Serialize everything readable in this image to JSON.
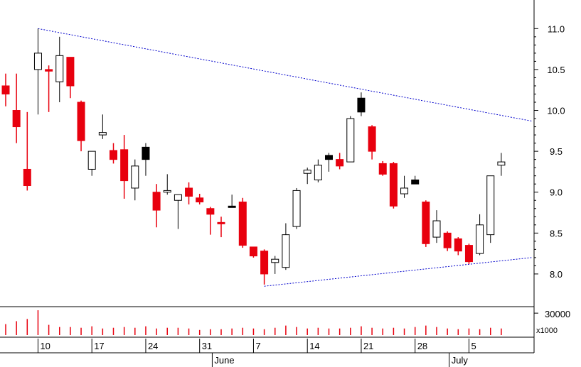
{
  "chart_data": {
    "type": "candlestick",
    "y_axis": {
      "ticks": [
        "8.0",
        "8.5",
        "9.0",
        "9.5",
        "10.0",
        "10.5",
        "11.0"
      ],
      "ylim": [
        7.6,
        11.35
      ]
    },
    "volume_axis": {
      "tick": "30000",
      "unit": "x1000",
      "ylim": [
        0,
        35000
      ]
    },
    "x_ticks": [
      {
        "label": "10",
        "index": 3
      },
      {
        "label": "17",
        "index": 8
      },
      {
        "label": "24",
        "index": 13
      },
      {
        "label": "31",
        "index": 18
      },
      {
        "label": "7",
        "index": 23
      },
      {
        "label": "14",
        "index": 28
      },
      {
        "label": "21",
        "index": 33
      },
      {
        "label": "28",
        "index": 38
      },
      {
        "label": "5",
        "index": 43
      }
    ],
    "months": [
      {
        "label": "June",
        "index": 19.5
      },
      {
        "label": "July",
        "index": 41.5
      }
    ],
    "candles": [
      {
        "open": 10.3,
        "high": 10.45,
        "low": 10.05,
        "close": 10.2,
        "color": "red",
        "volume": 15000
      },
      {
        "open": 10.0,
        "high": 10.45,
        "low": 9.6,
        "close": 9.8,
        "color": "red",
        "volume": 19000
      },
      {
        "open": 9.28,
        "high": 9.98,
        "low": 9.02,
        "close": 9.08,
        "color": "red",
        "volume": 22000
      },
      {
        "open": 10.5,
        "high": 11.0,
        "low": 9.95,
        "close": 10.7,
        "color": "white",
        "volume": 34000
      },
      {
        "open": 10.48,
        "high": 10.55,
        "low": 9.98,
        "close": 10.5,
        "color": "red",
        "volume": 14000
      },
      {
        "open": 10.35,
        "high": 10.9,
        "low": 10.1,
        "close": 10.67,
        "color": "white",
        "volume": 11000
      },
      {
        "open": 10.65,
        "high": 10.65,
        "low": 10.15,
        "close": 10.3,
        "color": "red",
        "volume": 11000
      },
      {
        "open": 10.1,
        "high": 10.12,
        "low": 9.5,
        "close": 9.63,
        "color": "red",
        "volume": 10000
      },
      {
        "open": 9.28,
        "high": 9.5,
        "low": 9.2,
        "close": 9.5,
        "color": "white",
        "volume": 12000
      },
      {
        "open": 9.7,
        "high": 9.95,
        "low": 9.65,
        "close": 9.73,
        "color": "white",
        "volume": 9000
      },
      {
        "open": 9.51,
        "high": 9.6,
        "low": 9.35,
        "close": 9.4,
        "color": "red",
        "volume": 10000
      },
      {
        "open": 9.52,
        "high": 9.7,
        "low": 8.92,
        "close": 9.14,
        "color": "red",
        "volume": 11000
      },
      {
        "open": 9.05,
        "high": 9.4,
        "low": 8.9,
        "close": 9.32,
        "color": "white",
        "volume": 10000
      },
      {
        "open": 9.4,
        "high": 9.6,
        "low": 9.2,
        "close": 9.55,
        "color": "black",
        "volume": 12000
      },
      {
        "open": 9.0,
        "high": 9.1,
        "low": 8.57,
        "close": 8.78,
        "color": "red",
        "volume": 9000
      },
      {
        "open": 9.0,
        "high": 9.22,
        "low": 8.97,
        "close": 9.02,
        "color": "white",
        "volume": 10000
      },
      {
        "open": 8.9,
        "high": 8.97,
        "low": 8.55,
        "close": 8.97,
        "color": "white",
        "volume": 10000
      },
      {
        "open": 9.05,
        "high": 9.12,
        "low": 8.85,
        "close": 8.95,
        "color": "red",
        "volume": 9000
      },
      {
        "open": 8.93,
        "high": 8.98,
        "low": 8.85,
        "close": 8.88,
        "color": "red",
        "volume": 7000
      },
      {
        "open": 8.8,
        "high": 8.82,
        "low": 8.48,
        "close": 8.73,
        "color": "red",
        "volume": 8000
      },
      {
        "open": 8.63,
        "high": 8.7,
        "low": 8.45,
        "close": 8.62,
        "color": "red",
        "volume": 8000
      },
      {
        "open": 8.82,
        "high": 8.97,
        "low": 8.82,
        "close": 8.83,
        "color": "black",
        "volume": 9000
      },
      {
        "open": 8.88,
        "high": 8.93,
        "low": 8.32,
        "close": 8.35,
        "color": "red",
        "volume": 10000
      },
      {
        "open": 8.33,
        "high": 8.33,
        "low": 8.2,
        "close": 8.22,
        "color": "red",
        "volume": 9000
      },
      {
        "open": 8.28,
        "high": 8.3,
        "low": 7.87,
        "close": 8.0,
        "color": "red",
        "volume": 8000
      },
      {
        "open": 8.14,
        "high": 8.22,
        "low": 8.0,
        "close": 8.18,
        "color": "white",
        "volume": 10000
      },
      {
        "open": 8.08,
        "high": 8.62,
        "low": 8.05,
        "close": 8.48,
        "color": "white",
        "volume": 13000
      },
      {
        "open": 8.58,
        "high": 9.05,
        "low": 8.55,
        "close": 9.02,
        "color": "white",
        "volume": 11000
      },
      {
        "open": 9.23,
        "high": 9.3,
        "low": 9.1,
        "close": 9.27,
        "color": "white",
        "volume": 9000
      },
      {
        "open": 9.15,
        "high": 9.4,
        "low": 9.12,
        "close": 9.33,
        "color": "white",
        "volume": 10000
      },
      {
        "open": 9.4,
        "high": 9.48,
        "low": 9.25,
        "close": 9.45,
        "color": "black",
        "volume": 9000
      },
      {
        "open": 9.4,
        "high": 9.48,
        "low": 9.28,
        "close": 9.32,
        "color": "red",
        "volume": 9000
      },
      {
        "open": 9.37,
        "high": 9.93,
        "low": 9.37,
        "close": 9.9,
        "color": "white",
        "volume": 10000
      },
      {
        "open": 9.98,
        "high": 10.22,
        "low": 9.93,
        "close": 10.15,
        "color": "black",
        "volume": 12000
      },
      {
        "open": 9.8,
        "high": 9.82,
        "low": 9.4,
        "close": 9.5,
        "color": "red",
        "volume": 10000
      },
      {
        "open": 9.35,
        "high": 9.38,
        "low": 9.2,
        "close": 9.22,
        "color": "red",
        "volume": 9000
      },
      {
        "open": 9.35,
        "high": 9.37,
        "low": 8.8,
        "close": 8.83,
        "color": "red",
        "volume": 10000
      },
      {
        "open": 8.98,
        "high": 9.2,
        "low": 8.93,
        "close": 9.05,
        "color": "white",
        "volume": 9000
      },
      {
        "open": 9.15,
        "high": 9.2,
        "low": 9.1,
        "close": 9.1,
        "color": "black",
        "volume": 11000
      },
      {
        "open": 8.88,
        "high": 8.9,
        "low": 8.33,
        "close": 8.37,
        "color": "red",
        "volume": 13000
      },
      {
        "open": 8.45,
        "high": 8.78,
        "low": 8.38,
        "close": 8.65,
        "color": "white",
        "volume": 11000
      },
      {
        "open": 8.5,
        "high": 8.52,
        "low": 8.28,
        "close": 8.32,
        "color": "red",
        "volume": 9000
      },
      {
        "open": 8.43,
        "high": 8.45,
        "low": 8.23,
        "close": 8.28,
        "color": "red",
        "volume": 8000
      },
      {
        "open": 8.35,
        "high": 8.37,
        "low": 8.12,
        "close": 8.15,
        "color": "red",
        "volume": 9000
      },
      {
        "open": 8.25,
        "high": 8.73,
        "low": 8.23,
        "close": 8.6,
        "color": "white",
        "volume": 8000
      },
      {
        "open": 8.48,
        "high": 9.2,
        "low": 8.38,
        "close": 9.2,
        "color": "white",
        "volume": 10000
      },
      {
        "open": 9.33,
        "high": 9.48,
        "low": 9.2,
        "close": 9.37,
        "color": "white",
        "volume": 9000
      }
    ],
    "trendlines": [
      {
        "name": "upper-trendline",
        "from": {
          "index": 3,
          "value": 11.0
        },
        "to": {
          "index": 48.8,
          "value": 9.87
        }
      },
      {
        "name": "lower-trendline",
        "from": {
          "index": 24,
          "value": 7.85
        },
        "to": {
          "index": 48.8,
          "value": 8.2
        }
      }
    ],
    "colors": {
      "up": "#ffffff",
      "down": "#e8000e",
      "black": "#000000",
      "volume": "#e8000e",
      "trendline": "#0000cc",
      "axis": "#000000"
    },
    "grid": false
  }
}
